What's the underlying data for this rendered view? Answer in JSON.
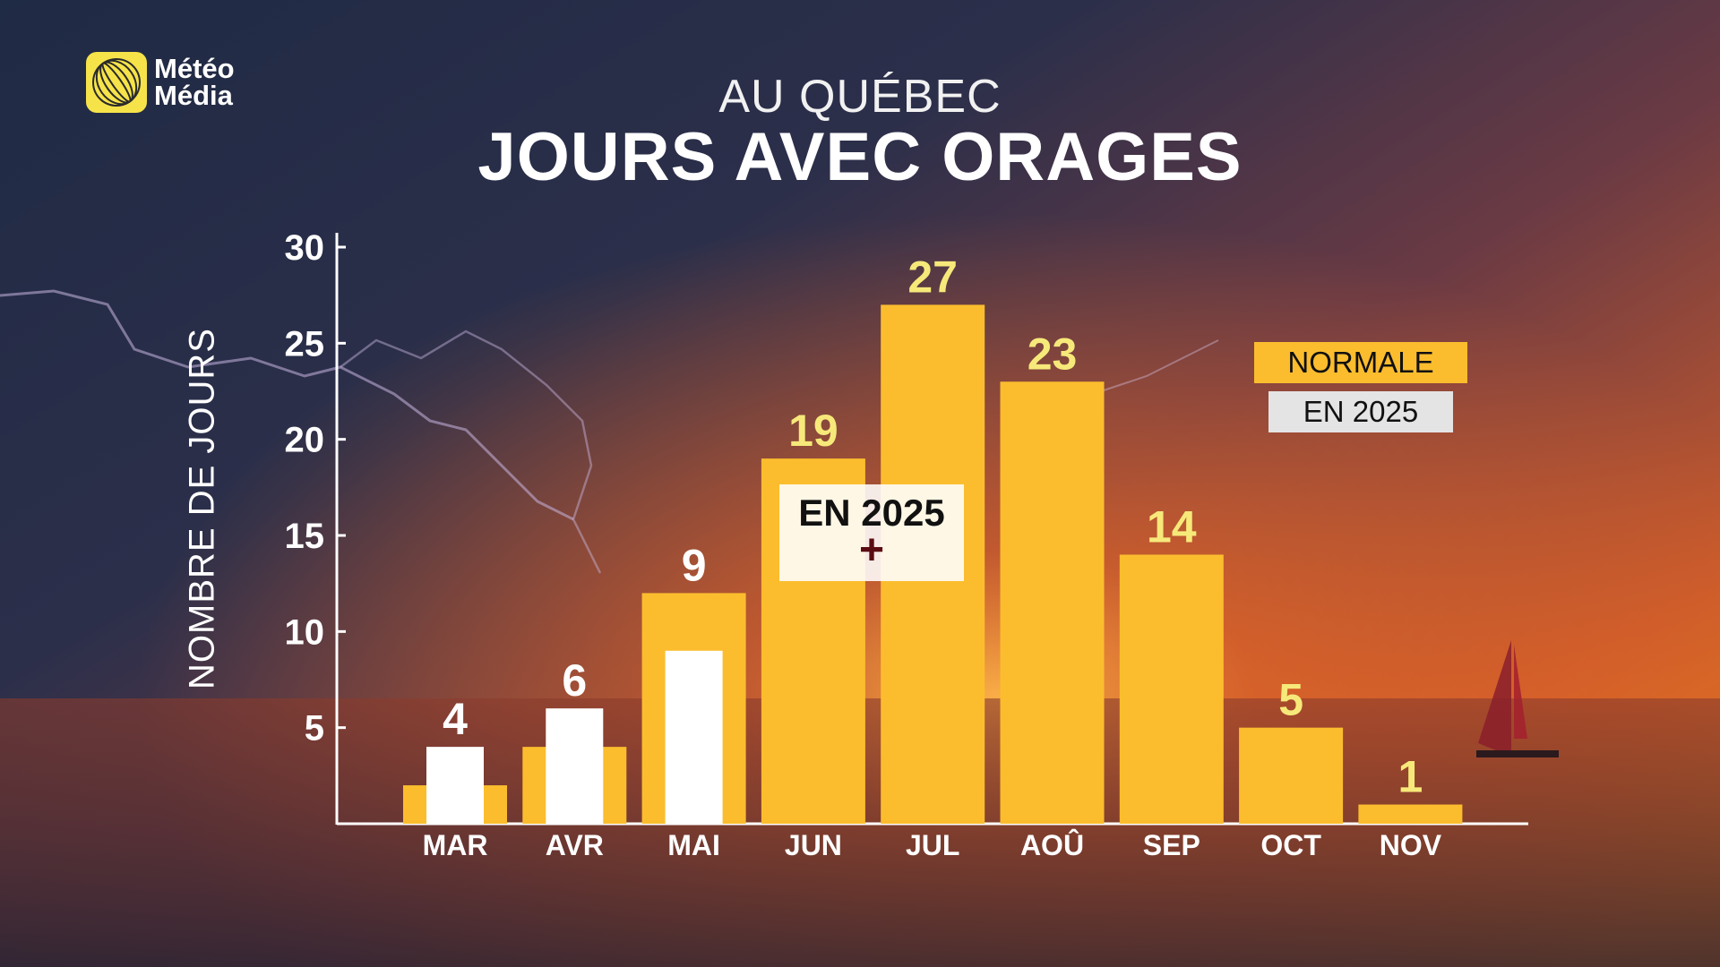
{
  "brand": {
    "line1": "Météo",
    "line2": "Média",
    "logo_color": "#f6e34a"
  },
  "header": {
    "subtitle": "AU QUÉBEC",
    "title": "JOURS AVEC ORAGES"
  },
  "legend": {
    "normal": "NORMALE",
    "year": "EN 2025"
  },
  "annotation": {
    "text": "EN 2025",
    "symbol": "+"
  },
  "colors": {
    "normal": "#fbbd2e",
    "year": "#ffffff",
    "value_label_normal": "#f6e97a",
    "value_label_year": "#ffffff"
  },
  "chart_data": {
    "type": "bar",
    "title": "JOURS AVEC ORAGES",
    "subtitle": "AU QUÉBEC",
    "ylabel": "NOMBRE DE JOURS",
    "xlabel": "",
    "ylim": [
      0,
      30
    ],
    "yticks": [
      5,
      10,
      15,
      20,
      25,
      30
    ],
    "grid": false,
    "legend_position": "right",
    "categories": [
      "MAR",
      "AVR",
      "MAI",
      "JUN",
      "JUL",
      "AOÛ",
      "SEP",
      "OCT",
      "NOV"
    ],
    "series": [
      {
        "name": "NORMALE",
        "values": [
          2,
          4,
          12,
          19,
          27,
          23,
          14,
          5,
          1
        ]
      },
      {
        "name": "EN 2025",
        "values": [
          4,
          6,
          9,
          null,
          null,
          null,
          null,
          null,
          null
        ]
      }
    ],
    "value_labels": [
      "4",
      "6",
      "9",
      "19",
      "27",
      "23",
      "14",
      "5",
      "1"
    ]
  }
}
